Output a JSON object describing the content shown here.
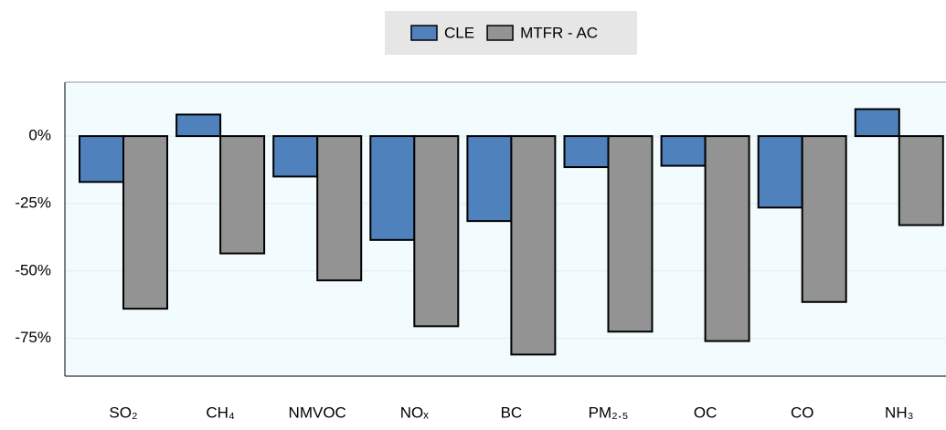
{
  "chart_data": {
    "type": "bar",
    "categories": [
      "SO₂",
      "CH₄",
      "NMVOC",
      "NOₓ",
      "BC",
      "PM₂.₅",
      "OC",
      "CO",
      "NH₃"
    ],
    "series": [
      {
        "name": "CLE",
        "color": "#4f81bd",
        "values": [
          -17,
          8,
          -15,
          -38.5,
          -31.5,
          -11.5,
          -11,
          -26.5,
          10
        ]
      },
      {
        "name": "MTFR - AC",
        "color": "#939393",
        "values": [
          -64,
          -43.5,
          -53.5,
          -70.5,
          -81,
          -72.5,
          -76,
          -61.5,
          -33
        ]
      }
    ],
    "ylim": [
      -89,
      20
    ],
    "yticks": [
      {
        "value": -75,
        "label": "-75%"
      },
      {
        "value": -50,
        "label": "-50%"
      },
      {
        "value": -25,
        "label": "-25%"
      },
      {
        "value": 0,
        "label": "0%"
      }
    ],
    "grid": true,
    "legend": "top"
  }
}
